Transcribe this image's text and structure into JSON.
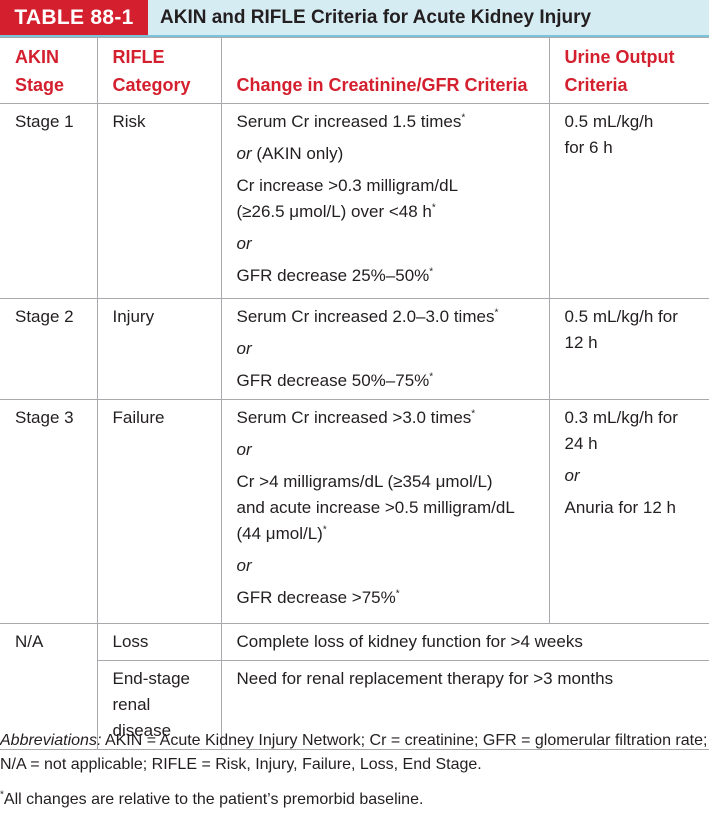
{
  "header": {
    "table_number": "TABLE 88-1",
    "title": "AKIN and RIFLE Criteria for Acute Kidney Injury"
  },
  "columns": {
    "akin": [
      "AKIN",
      "Stage"
    ],
    "rifle": [
      "RIFLE",
      "Category"
    ],
    "creatinine": "Change in Creatinine/GFR Criteria",
    "urine": [
      "Urine Output",
      "Criteria"
    ]
  },
  "rows": [
    {
      "akin": "Stage 1",
      "rifle": "Risk",
      "criteria": [
        "Serum Cr increased 1.5 times",
        "or",
        "(AKIN only)",
        "Cr increase >0.3 milligram/dL",
        "(≥26.5 μmol/L) over <48 h",
        "or",
        "GFR decrease 25%–50%"
      ],
      "urine": [
        "0.5 mL/kg/h",
        "for 6 h"
      ]
    },
    {
      "akin": "Stage 2",
      "rifle": "Injury",
      "criteria": [
        "Serum Cr increased 2.0–3.0 times",
        "or",
        "GFR decrease 50%–75%"
      ],
      "urine": [
        "0.5 mL/kg/h for",
        "12 h"
      ]
    },
    {
      "akin": "Stage 3",
      "rifle": "Failure",
      "criteria": [
        "Serum Cr increased >3.0 times",
        "or",
        "Cr >4 milligrams/dL (≥354 μmol/L)",
        "and acute increase >0.5 milligram/dL",
        "(44 μmol/L)",
        "or",
        "GFR decrease >75%"
      ],
      "urine": [
        "0.3 mL/kg/h for",
        "24 h",
        "or",
        "Anuria for 12 h"
      ]
    },
    {
      "akin": "N/A",
      "rifle": "Loss",
      "criteria": [
        "Complete loss of kidney function for >4 weeks"
      ]
    },
    {
      "rifle": [
        "End-stage",
        "renal disease"
      ],
      "criteria": [
        "Need for renal replacement therapy for >3 months"
      ]
    }
  ],
  "footnote_mark": "*",
  "abbreviations": {
    "label": "Abbreviations:",
    "line1": "AKIN = Acute Kidney Injury Network; Cr = creatinine; GFR = glomerular filtration rate;",
    "line2": "N/A = not applicable; RIFLE = Risk, Injury, Failure, Loss, End Stage."
  },
  "footnote": "All changes are relative to the patient’s premorbid baseline.",
  "colors": {
    "accent_red": "#d4202e",
    "title_band": "#d6ecf3",
    "band_rule": "#7cc3da",
    "grid_line": "#a7a9ac",
    "text": "#231f20"
  }
}
